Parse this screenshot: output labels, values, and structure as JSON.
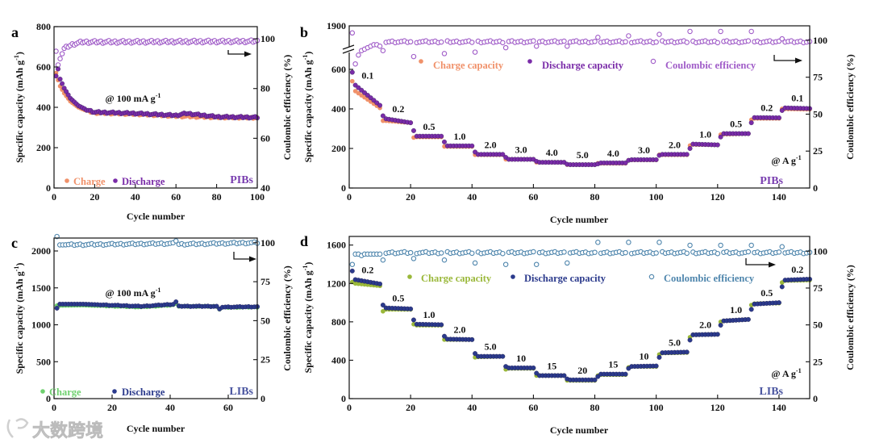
{
  "watermark": "大数跨境",
  "chart_data": [
    {
      "id": "a",
      "type": "scatter",
      "panel_letter": "a",
      "xlabel": "Cycle number",
      "ylabel": {
        "text": "Specific capacity (mAh g",
        "sup": "-1",
        "tail": ")"
      },
      "y2label": "Coulombic efficiency (%)",
      "xlim": [
        0,
        100
      ],
      "ylim": [
        0,
        800
      ],
      "y2lim": [
        40,
        104.9
      ],
      "xticks": [
        0,
        20,
        40,
        60,
        80,
        100
      ],
      "yticks": [
        0,
        200,
        400,
        600,
        800
      ],
      "y2ticks": [
        40,
        60,
        80,
        100
      ],
      "annotation": {
        "text": "@ 100 mA g",
        "sup": "-1"
      },
      "system_label": "PIBs",
      "legend": [
        "Charge",
        "Discharge"
      ],
      "colors": {
        "charge": "#f0916a",
        "discharge": "#7a2ca8",
        "ce": "#a05cc8",
        "system": "#7a3fb0"
      },
      "series": [
        {
          "name": "Charge",
          "axis": "left",
          "keypoints": [
            [
              1,
              570
            ],
            [
              2,
              535
            ],
            [
              3,
              505
            ],
            [
              5,
              470
            ],
            [
              8,
              430
            ],
            [
              12,
              400
            ],
            [
              16,
              383
            ],
            [
              20,
              372
            ],
            [
              40,
              366
            ],
            [
              60,
              356
            ],
            [
              80,
              350
            ],
            [
              100,
              348
            ]
          ]
        },
        {
          "name": "Discharge",
          "axis": "left",
          "keypoints": [
            [
              1,
              555
            ],
            [
              2,
              590
            ],
            [
              3,
              540
            ],
            [
              5,
              495
            ],
            [
              8,
              445
            ],
            [
              12,
              408
            ],
            [
              16,
              388
            ],
            [
              20,
              376
            ],
            [
              40,
              370
            ],
            [
              60,
              360
            ],
            [
              65,
              370
            ],
            [
              80,
              353
            ],
            [
              100,
              350
            ]
          ]
        },
        {
          "name": "Coulombic efficiency",
          "axis": "right",
          "keypoints": [
            [
              1,
              95
            ],
            [
              2,
              89.5
            ],
            [
              3,
              92
            ],
            [
              4,
              94
            ],
            [
              5,
              96
            ],
            [
              7,
              97
            ],
            [
              10,
              98
            ],
            [
              14,
              98.7
            ],
            [
              100,
              99
            ]
          ]
        }
      ]
    },
    {
      "id": "b",
      "type": "scatter",
      "panel_letter": "b",
      "xlabel": "Cycle number",
      "ylabel": {
        "text": "Specific capacity (mAh g",
        "sup": "-1",
        "tail": ")"
      },
      "y2label": "Coulombic efficiency (%)",
      "xlim": [
        0,
        150
      ],
      "ylim": [
        0,
        820
      ],
      "y_break": {
        "below": 700,
        "top_label": 1900
      },
      "y2lim": [
        0,
        109.8
      ],
      "xticks": [
        0,
        20,
        40,
        60,
        80,
        100,
        120,
        140
      ],
      "yticks": [
        0,
        200,
        400,
        600
      ],
      "y2ticks": [
        0,
        25,
        50,
        75,
        100
      ],
      "legend": [
        "Charge capacity",
        "Discharge capacity",
        "Coulombic efficiency"
      ],
      "annotation": {
        "text": "@ A g",
        "sup": "-1"
      },
      "system_label": "PIBs",
      "colors": {
        "charge": "#f0916a",
        "discharge": "#7a2ca8",
        "ce": "#a05cc8",
        "system": "#7a3fb0"
      },
      "rates": [
        "0.1",
        "0.2",
        "0.5",
        "1.0",
        "2.0",
        "3.0",
        "4.0",
        "5.0",
        "4.0",
        "3.0",
        "2.0",
        "1.0",
        "0.5",
        "0.2",
        "0.1"
      ],
      "discharge": [
        [
          585,
          520,
          418
        ],
        [
          365,
          350,
          330
        ],
        [
          290,
          262,
          262
        ],
        [
          233,
          213,
          213
        ],
        [
          182,
          170,
          170
        ],
        [
          155,
          145,
          145
        ],
        [
          135,
          130,
          130
        ],
        [
          120,
          118,
          118
        ],
        [
          122,
          127,
          127
        ],
        [
          140,
          143,
          143
        ],
        [
          165,
          170,
          170
        ],
        [
          200,
          222,
          218
        ],
        [
          258,
          275,
          275
        ],
        [
          330,
          356,
          355
        ],
        [
          392,
          405,
          402
        ]
      ],
      "charge": [
        [
          540,
          490,
          405
        ],
        [
          340,
          340,
          330
        ],
        [
          255,
          258,
          258
        ],
        [
          210,
          210,
          210
        ],
        [
          168,
          168,
          168
        ],
        [
          145,
          145,
          145
        ],
        [
          130,
          130,
          130
        ],
        [
          118,
          118,
          118
        ],
        [
          125,
          125,
          125
        ],
        [
          140,
          142,
          142
        ],
        [
          168,
          168,
          168
        ],
        [
          215,
          220,
          218
        ],
        [
          270,
          272,
          275
        ],
        [
          345,
          352,
          352
        ],
        [
          400,
          400,
          398
        ]
      ],
      "ce_first_segment": [
        105,
        84,
        90,
        93,
        94,
        95,
        96,
        97,
        97,
        96
      ],
      "ce_segment_first": [
        105,
        93,
        89,
        91,
        92,
        95,
        96,
        96,
        102,
        103,
        104,
        106,
        106,
        106,
        101
      ],
      "ce_base": 99
    },
    {
      "id": "c",
      "type": "scatter",
      "panel_letter": "c",
      "xlabel": "Cycle number",
      "ylabel": {
        "text": "Specific capacity (mAh g",
        "sup": "-1",
        "tail": ")"
      },
      "y2label": "Coulombic efficiency (%)",
      "xlim": [
        0,
        70
      ],
      "ylim": [
        0,
        2175
      ],
      "y2lim": [
        0,
        103
      ],
      "xticks": [
        0,
        20,
        40,
        60
      ],
      "yticks": [
        0,
        500,
        1000,
        1500,
        2000
      ],
      "y2ticks": [
        0,
        25,
        50,
        75,
        100
      ],
      "annotation": {
        "text": "@ 100 mA g",
        "sup": "-1"
      },
      "system_label": "LIBs",
      "legend": [
        "Charge",
        "Discharge"
      ],
      "colors": {
        "charge": "#6fd06f",
        "discharge": "#2b3a8c",
        "ce": "#4f86ad",
        "system": "#4a55a0"
      },
      "series": [
        {
          "name": "Charge",
          "axis": "left",
          "keypoints": [
            [
              1,
              1260
            ],
            [
              10,
              1265
            ],
            [
              30,
              1240
            ],
            [
              41,
              1268
            ],
            [
              42,
              1290
            ],
            [
              43,
              1250
            ],
            [
              56,
              1250
            ],
            [
              57,
              1212
            ],
            [
              58,
              1235
            ],
            [
              70,
              1240
            ]
          ]
        },
        {
          "name": "Discharge",
          "axis": "left",
          "keypoints": [
            [
              1,
              1225
            ],
            [
              2,
              1280
            ],
            [
              10,
              1280
            ],
            [
              30,
              1250
            ],
            [
              41,
              1278
            ],
            [
              42,
              1310
            ],
            [
              43,
              1252
            ],
            [
              56,
              1250
            ],
            [
              57,
              1210
            ],
            [
              58,
              1240
            ],
            [
              70,
              1245
            ]
          ]
        },
        {
          "name": "Coulombic efficiency",
          "axis": "right",
          "keypoints": [
            [
              1,
              104
            ],
            [
              2,
              98.6
            ],
            [
              41,
              99.5
            ],
            [
              42,
              101.5
            ],
            [
              43,
              99
            ],
            [
              70,
              100
            ]
          ]
        }
      ]
    },
    {
      "id": "d",
      "type": "scatter",
      "panel_letter": "d",
      "xlabel": "Cycle number",
      "ylabel": {
        "text": "Specific capacity (mAh g",
        "sup": "-1",
        "tail": ")"
      },
      "y2label": "Coulombic efficiency (%)",
      "xlim": [
        0,
        150
      ],
      "ylim": [
        0,
        1690
      ],
      "y2lim": [
        0,
        110
      ],
      "xticks": [
        0,
        20,
        40,
        60,
        80,
        100,
        120,
        140
      ],
      "yticks": [
        0,
        400,
        800,
        1200,
        1600
      ],
      "y2ticks": [
        0,
        25,
        50,
        75,
        100
      ],
      "legend": [
        "Charge capacity",
        "Discharge capacity",
        "Coulombic efficiency"
      ],
      "annotation": {
        "text": "@ A g",
        "sup": "-1"
      },
      "system_label": "LIBs",
      "colors": {
        "charge": "#9ab83a",
        "discharge": "#2b3a8c",
        "ce": "#4f86ad",
        "system": "#4a55a0"
      },
      "rates": [
        "0.2",
        "0.5",
        "1.0",
        "2.0",
        "5.0",
        "10",
        "15",
        "20",
        "15",
        "10",
        "5.0",
        "2.0",
        "1.0",
        "0.5",
        "0.2"
      ],
      "discharge": [
        [
          1330,
          1240,
          1195
        ],
        [
          975,
          945,
          935
        ],
        [
          820,
          775,
          770
        ],
        [
          650,
          620,
          615
        ],
        [
          470,
          440,
          440
        ],
        [
          335,
          320,
          320
        ],
        [
          265,
          240,
          240
        ],
        [
          205,
          195,
          195
        ],
        [
          230,
          255,
          255
        ],
        [
          315,
          335,
          340
        ],
        [
          430,
          478,
          485
        ],
        [
          610,
          665,
          670
        ],
        [
          765,
          810,
          825
        ],
        [
          930,
          985,
          1000
        ],
        [
          1165,
          1235,
          1245
        ]
      ],
      "charge": [
        [
          1215,
          1200,
          1175
        ],
        [
          910,
          930,
          930
        ],
        [
          775,
          765,
          765
        ],
        [
          615,
          615,
          615
        ],
        [
          430,
          435,
          440
        ],
        [
          305,
          315,
          315
        ],
        [
          240,
          240,
          240
        ],
        [
          190,
          190,
          190
        ],
        [
          240,
          250,
          250
        ],
        [
          325,
          335,
          335
        ],
        [
          460,
          475,
          480
        ],
        [
          640,
          665,
          670
        ],
        [
          800,
          810,
          825
        ],
        [
          975,
          990,
          995
        ],
        [
          1210,
          1230,
          1235
        ]
      ],
      "ce_first_segment": [
        91,
        98,
        98,
        97,
        98,
        98,
        98,
        98,
        98,
        98
      ],
      "ce_segment_first": [
        91,
        94,
        95,
        94,
        92,
        91,
        91,
        92,
        106,
        106,
        106,
        104,
        104,
        104,
        103
      ],
      "ce_base": 99
    }
  ]
}
